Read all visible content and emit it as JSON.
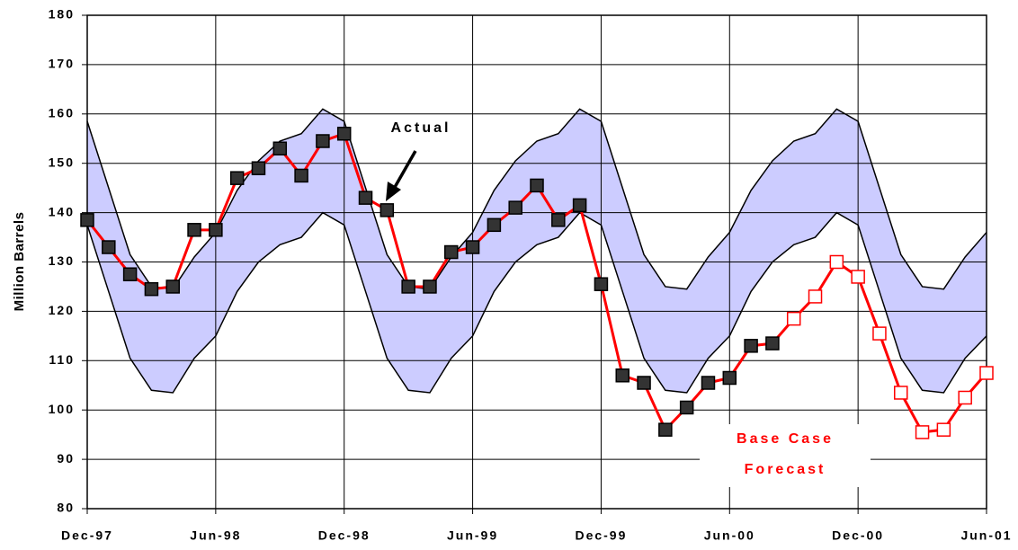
{
  "chart_data": {
    "type": "line",
    "y_label": "Million Barrels",
    "categories": [
      "Dec-97",
      null,
      null,
      null,
      null,
      null,
      "Jun-98",
      null,
      null,
      null,
      null,
      null,
      "Dec-98",
      null,
      null,
      null,
      null,
      null,
      "Jun-99",
      null,
      null,
      null,
      null,
      null,
      "Dec-99",
      null,
      null,
      null,
      null,
      null,
      "Jun-00",
      null,
      null,
      null,
      null,
      null,
      "Dec-00",
      null,
      null,
      null,
      null,
      null,
      "Jun-01"
    ],
    "ylim": [
      80,
      180
    ],
    "yticks": [
      80,
      90,
      100,
      110,
      120,
      130,
      140,
      150,
      160,
      170,
      180
    ],
    "grid": true,
    "band": {
      "color": "#ccccff",
      "upper": [
        158.5,
        145,
        131.5,
        125,
        124.5,
        131,
        136,
        144.5,
        150.5,
        154.5,
        156,
        161,
        158.5,
        145,
        131.5,
        125,
        124.5,
        131,
        136,
        144.5,
        150.5,
        154.5,
        156,
        161,
        158.5,
        145,
        131.5,
        125,
        124.5,
        131,
        136,
        144.5,
        150.5,
        154.5,
        156,
        161,
        158.5,
        145,
        131.5,
        125,
        124.5,
        131,
        136
      ],
      "lower": [
        137.5,
        124,
        110.5,
        104,
        103.5,
        110.5,
        115,
        124,
        130,
        133.5,
        135,
        140,
        137.5,
        124,
        110.5,
        104,
        103.5,
        110.5,
        115,
        124,
        130,
        133.5,
        135,
        140,
        137.5,
        124,
        110.5,
        104,
        103.5,
        110.5,
        115,
        124,
        130,
        133.5,
        135,
        140,
        137.5,
        124,
        110.5,
        104,
        103.5,
        110.5,
        115
      ]
    },
    "series": [
      {
        "color": "#ff0000",
        "marker_fill": "#333333",
        "values": [
          138.5,
          133,
          127.5,
          124.5,
          125,
          136.5,
          136.5,
          147,
          149,
          153,
          147.5,
          154.5,
          156,
          143,
          140.5,
          125,
          125,
          132,
          133,
          137.5,
          141,
          145.5,
          138.5,
          141.5,
          125.5,
          107,
          105.5,
          96,
          100.5,
          105.5,
          106.5,
          113,
          113.5,
          null,
          null,
          null,
          null,
          null,
          null,
          null,
          null,
          null,
          null
        ]
      },
      {
        "color": "#ff0000",
        "marker_fill": "#ffffff",
        "values": [
          null,
          null,
          null,
          null,
          null,
          null,
          null,
          null,
          null,
          null,
          null,
          null,
          null,
          null,
          null,
          null,
          null,
          null,
          null,
          null,
          null,
          null,
          null,
          null,
          null,
          null,
          null,
          null,
          null,
          null,
          null,
          null,
          null,
          118.5,
          123,
          130,
          127,
          115.5,
          103.5,
          95.5,
          96,
          102.5,
          107.5
        ]
      }
    ],
    "annotations": [
      "Actual",
      "Base Case",
      "Forecast"
    ]
  }
}
